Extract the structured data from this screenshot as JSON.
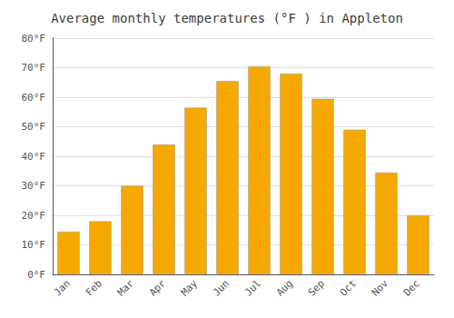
{
  "chart_data": {
    "type": "bar",
    "title": "Average monthly temperatures (°F ) in Appleton",
    "categories": [
      "Jan",
      "Feb",
      "Mar",
      "Apr",
      "May",
      "Jun",
      "Jul",
      "Aug",
      "Sep",
      "Oct",
      "Nov",
      "Dec"
    ],
    "values": [
      14.5,
      18.0,
      30.0,
      44.0,
      56.5,
      65.5,
      70.5,
      68.0,
      59.5,
      49.0,
      34.5,
      20.0
    ],
    "color": "#F5A800",
    "ylim": [
      0,
      80
    ],
    "yticks": [
      {
        "value": 0,
        "label": "0°F"
      },
      {
        "value": 10,
        "label": "10°F"
      },
      {
        "value": 20,
        "label": "20°F"
      },
      {
        "value": 30,
        "label": "30°F"
      },
      {
        "value": 40,
        "label": "40°F"
      },
      {
        "value": 50,
        "label": "50°F"
      },
      {
        "value": 60,
        "label": "60°F"
      },
      {
        "value": 70,
        "label": "70°F"
      },
      {
        "value": 80,
        "label": "80°F"
      }
    ],
    "grid": true
  }
}
